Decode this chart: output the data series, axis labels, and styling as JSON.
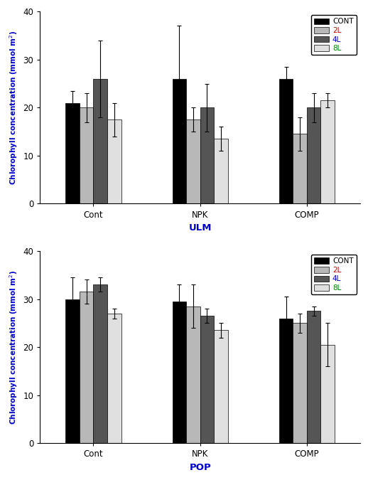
{
  "ulm": {
    "xlabel": "ULM",
    "categories": [
      "Cont",
      "NPK",
      "COMP"
    ],
    "series": {
      "CONT": {
        "values": [
          21.0,
          26.0,
          26.0
        ],
        "errors": [
          2.5,
          11.0,
          2.5
        ]
      },
      "2L": {
        "values": [
          20.0,
          17.5,
          14.5
        ],
        "errors": [
          3.0,
          2.5,
          3.5
        ]
      },
      "4L": {
        "values": [
          26.0,
          20.0,
          20.0
        ],
        "errors": [
          8.0,
          5.0,
          3.0
        ]
      },
      "8L": {
        "values": [
          17.5,
          13.5,
          21.5
        ],
        "errors": [
          3.5,
          2.5,
          1.5
        ]
      }
    },
    "ylim": [
      0,
      40
    ],
    "yticks": [
      0,
      10,
      20,
      30,
      40
    ]
  },
  "pop": {
    "xlabel": "POP",
    "categories": [
      "Cont",
      "NPK",
      "COMP"
    ],
    "series": {
      "CONT": {
        "values": [
          30.0,
          29.5,
          26.0
        ],
        "errors": [
          4.5,
          3.5,
          4.5
        ]
      },
      "2L": {
        "values": [
          31.5,
          28.5,
          25.0
        ],
        "errors": [
          2.5,
          4.5,
          2.0
        ]
      },
      "4L": {
        "values": [
          33.0,
          26.5,
          27.5
        ],
        "errors": [
          1.5,
          1.5,
          1.0
        ]
      },
      "8L": {
        "values": [
          27.0,
          23.5,
          20.5
        ],
        "errors": [
          1.0,
          1.5,
          4.5
        ]
      }
    },
    "ylim": [
      0,
      40
    ],
    "yticks": [
      0,
      10,
      20,
      30,
      40
    ]
  },
  "bar_colors": {
    "CONT": "#000000",
    "2L": "#b8b8b8",
    "4L": "#555555",
    "8L": "#e0e0e0"
  },
  "legend_labels": [
    "CONT",
    "2L",
    "4L",
    "8L"
  ],
  "legend_text_colors": {
    "CONT": "#000000",
    "2L": "#cc0000",
    "4L": "#0000cc",
    "8L": "#008800"
  },
  "ylabel_color": "#0000cc",
  "xlabel_color": "#0000cc",
  "bar_width": 0.13,
  "capsize": 2,
  "error_color": "#000000",
  "edge_color": "#000000"
}
